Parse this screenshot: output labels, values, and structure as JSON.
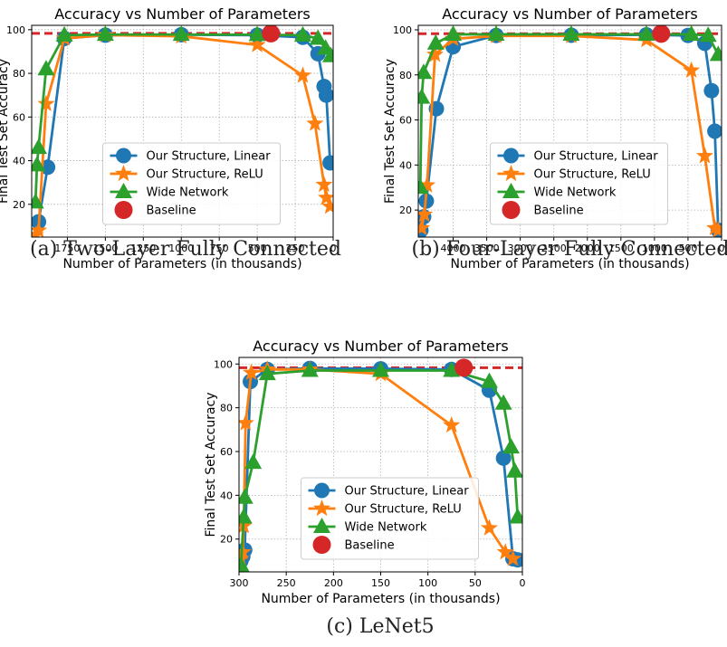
{
  "colors": {
    "linear": "#1f77b4",
    "relu": "#ff7f0e",
    "wide": "#2ca02c",
    "baseline": "#d62728",
    "grid": "#b0b0b0"
  },
  "captions": {
    "a": "(a) Two-Layer Fully Connected",
    "b": "(b) Four-Layer Fully Connected",
    "c": "(c) LeNet5"
  },
  "chart_data": [
    {
      "id": "a",
      "type": "line",
      "title": "Accuracy vs Number of Parameters",
      "xlabel": "Number of Parameters (in thousands)",
      "ylabel": "Final Test Set Accuracy",
      "xlim": [
        1985,
        0
      ],
      "ylim": [
        5,
        102
      ],
      "xticks": [
        1750,
        1500,
        1250,
        1000,
        750,
        500,
        250,
        0
      ],
      "yticks": [
        20,
        40,
        60,
        80,
        100
      ],
      "grid": true,
      "legend_position": "lower-center",
      "baseline_accuracy": 98.3,
      "series": [
        {
          "name": "Our Structure, Linear",
          "marker": "circle",
          "color_key": "linear",
          "x": [
            1940,
            1880,
            1770,
            1500,
            1000,
            500,
            200,
            100,
            60,
            45,
            20
          ],
          "y": [
            12,
            37,
            96,
            97.5,
            97.7,
            97.5,
            96.5,
            89,
            74,
            70,
            39
          ]
        },
        {
          "name": "Our Structure, ReLU",
          "marker": "star",
          "color_key": "relu",
          "x": [
            1960,
            1940,
            1890,
            1770,
            1500,
            1000,
            500,
            200,
            120,
            60,
            45,
            20
          ],
          "y": [
            6,
            8,
            66,
            96,
            97.5,
            97,
            93,
            79,
            57,
            29,
            23,
            19
          ]
        },
        {
          "name": "Wide Network",
          "marker": "triangle",
          "color_key": "wide",
          "x": [
            1960,
            1950,
            1940,
            1890,
            1770,
            1500,
            1000,
            500,
            200,
            100,
            50,
            15
          ],
          "y": [
            21,
            38,
            46,
            82,
            97.5,
            97.8,
            97.8,
            97.7,
            97.5,
            96,
            91.5,
            88
          ]
        },
        {
          "name": "Baseline",
          "marker": "circle-large",
          "color_key": "baseline",
          "x": [
            410
          ],
          "y": [
            98.3
          ]
        }
      ]
    },
    {
      "id": "b",
      "type": "line",
      "title": "Accuracy vs Number of Parameters",
      "xlabel": "Number of Parameters (in thousands)",
      "ylabel": "Final Test Set Accuracy",
      "xlim": [
        4520,
        0
      ],
      "ylim": [
        8,
        102
      ],
      "xticks": [
        4000,
        3500,
        3000,
        2500,
        2000,
        1500,
        1000,
        500,
        0
      ],
      "yticks": [
        20,
        40,
        60,
        80,
        100
      ],
      "grid": true,
      "legend_position": "lower-center",
      "baseline_accuracy": 98.3,
      "series": [
        {
          "name": "Our Structure, Linear",
          "marker": "circle",
          "color_key": "linear",
          "x": [
            4480,
            4440,
            4400,
            4250,
            4000,
            3360,
            2240,
            1120,
            500,
            250,
            150,
            100,
            50
          ],
          "y": [
            11,
            17,
            24,
            65,
            92.5,
            97.5,
            97.6,
            97.8,
            97.5,
            94,
            73,
            55,
            11
          ]
        },
        {
          "name": "Our Structure, ReLU",
          "marker": "star",
          "color_key": "relu",
          "x": [
            4470,
            4430,
            4390,
            4270,
            4000,
            3360,
            2240,
            1120,
            450,
            250,
            100,
            50
          ],
          "y": [
            12,
            18,
            31,
            89,
            96,
            97.3,
            97.3,
            95.5,
            82,
            44,
            12,
            11
          ]
        },
        {
          "name": "Wide Network",
          "marker": "triangle",
          "color_key": "wide",
          "x": [
            4490,
            4470,
            4440,
            4260,
            4000,
            3360,
            2240,
            1120,
            450,
            200,
            50
          ],
          "y": [
            30,
            70,
            81,
            94,
            98,
            98,
            98,
            98,
            98,
            97.5,
            89
          ]
        },
        {
          "name": "Baseline",
          "marker": "circle-large",
          "color_key": "baseline",
          "x": [
            900
          ],
          "y": [
            98.3
          ]
        }
      ]
    },
    {
      "id": "c",
      "type": "line",
      "title": "Accuracy vs Number of Parameters",
      "xlabel": "Number of Parameters (in thousands)",
      "ylabel": "Final Test Set Accuracy",
      "xlim": [
        300,
        0
      ],
      "ylim": [
        5,
        103
      ],
      "xticks": [
        300,
        250,
        200,
        150,
        100,
        50,
        0
      ],
      "yticks": [
        20,
        40,
        60,
        80,
        100
      ],
      "grid": true,
      "legend_position": "lower-center",
      "baseline_accuracy": 98.3,
      "series": [
        {
          "name": "Our Structure, Linear",
          "marker": "circle",
          "color_key": "linear",
          "x": [
            298,
            296,
            294,
            288,
            270,
            225,
            150,
            75,
            35,
            20,
            10,
            5
          ],
          "y": [
            10,
            12,
            15,
            92,
            97.5,
            98,
            97.8,
            97.5,
            88,
            57,
            11,
            10.5
          ]
        },
        {
          "name": "Our Structure, ReLU",
          "marker": "star",
          "color_key": "relu",
          "x": [
            298,
            296,
            295,
            293,
            287,
            270,
            225,
            150,
            75,
            35,
            18,
            10
          ],
          "y": [
            11,
            14,
            26,
            73,
            96,
            97.5,
            97.5,
            95.5,
            72,
            25,
            14,
            11
          ]
        },
        {
          "name": "Wide Network",
          "marker": "triangle",
          "color_key": "wide",
          "x": [
            300,
            298,
            295,
            294,
            285,
            270,
            225,
            150,
            75,
            35,
            20,
            12,
            8,
            5
          ],
          "y": [
            5,
            8,
            30,
            39,
            55,
            95.5,
            97,
            97,
            97,
            92,
            82,
            62,
            51,
            30
          ]
        },
        {
          "name": "Baseline",
          "marker": "circle-large",
          "color_key": "baseline",
          "x": [
            62
          ],
          "y": [
            98.3
          ]
        }
      ]
    }
  ]
}
